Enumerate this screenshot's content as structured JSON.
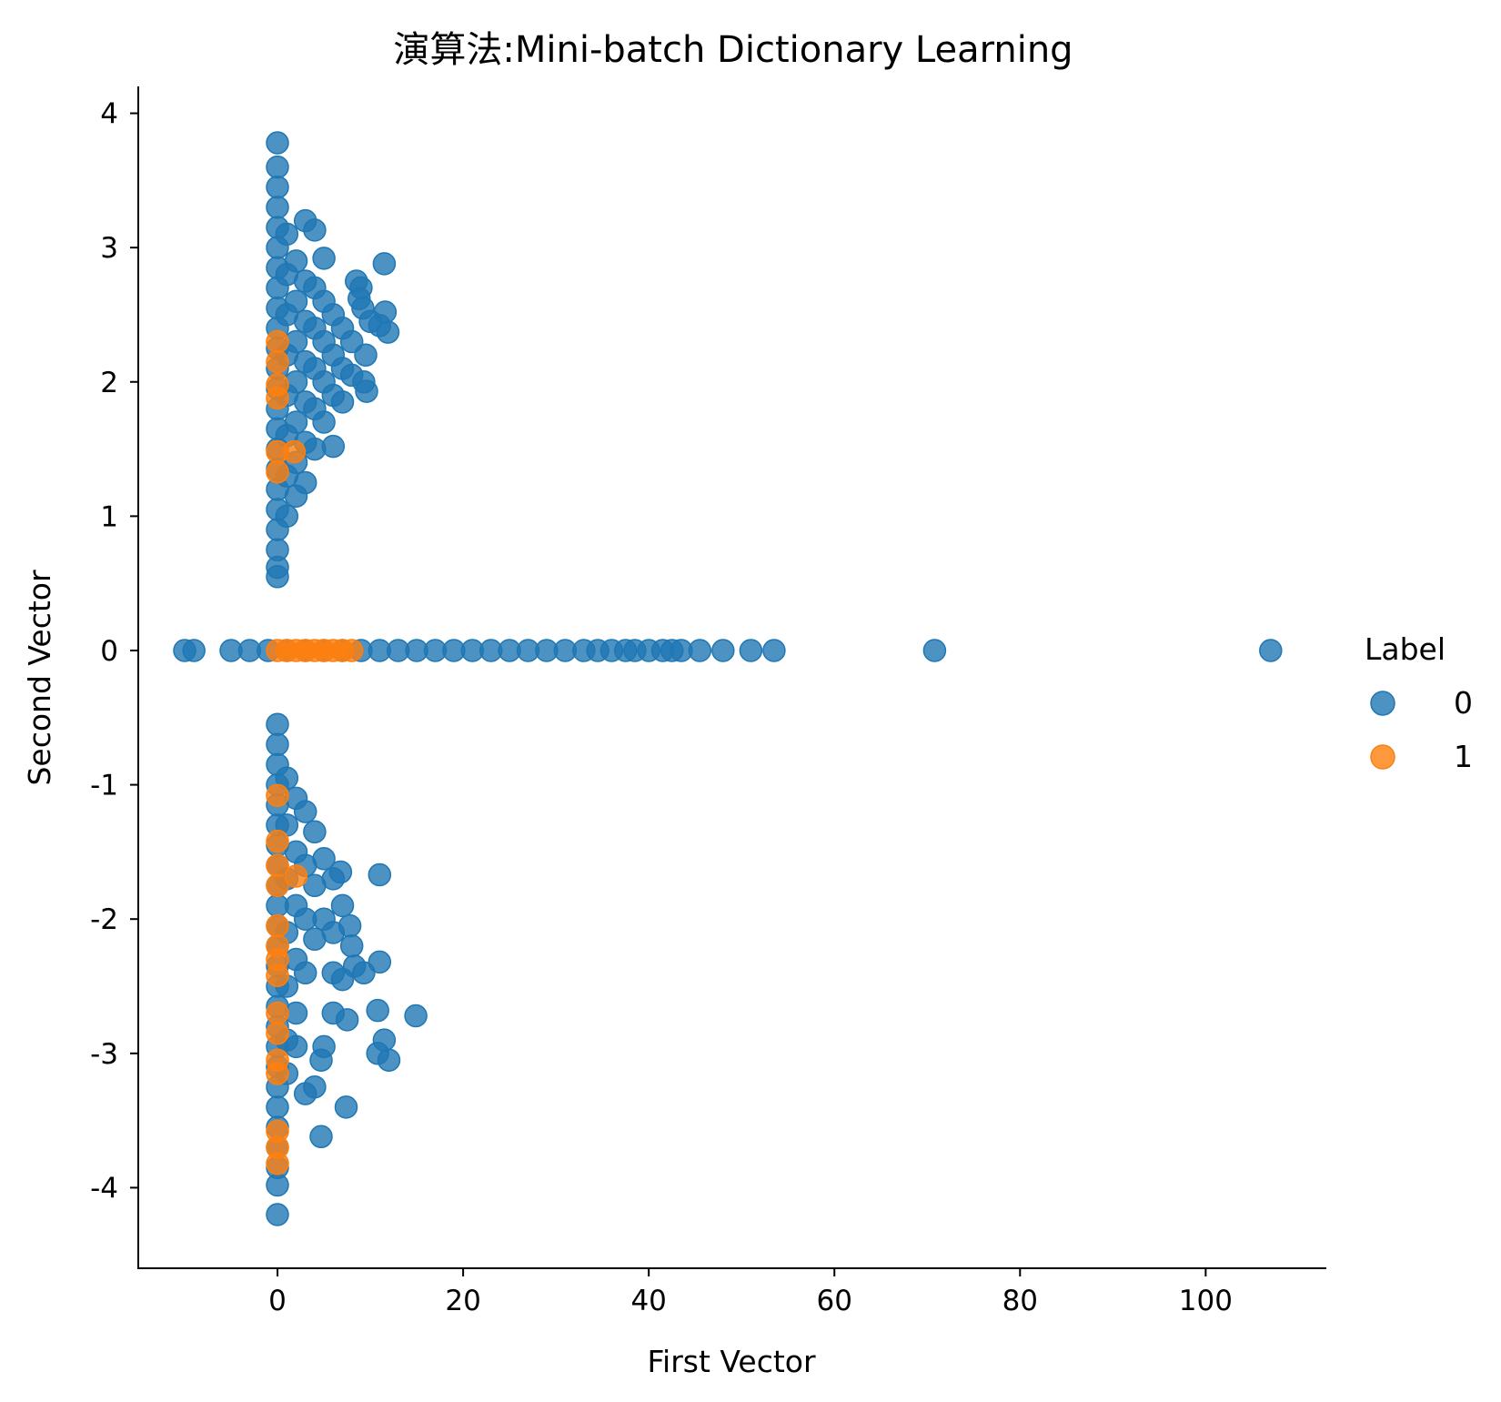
{
  "chart_data": {
    "type": "scatter",
    "title": "演算法:Mini-batch Dictionary Learning",
    "xlabel": "First Vector",
    "ylabel": "Second Vector",
    "xlim": [
      -15,
      113
    ],
    "ylim": [
      -4.6,
      4.2
    ],
    "x_ticks": [
      0,
      20,
      40,
      60,
      80,
      100
    ],
    "y_ticks": [
      -4,
      -3,
      -2,
      -1,
      0,
      1,
      2,
      3,
      4
    ],
    "x_tick_labels": [
      "0",
      "20",
      "40",
      "60",
      "80",
      "100"
    ],
    "y_tick_labels": [
      "-4",
      "-3",
      "-2",
      "-1",
      "0",
      "1",
      "2",
      "3",
      "4"
    ],
    "grid": false,
    "legend": {
      "title": "Label",
      "position": "right-center",
      "entries": [
        "0",
        "1"
      ]
    },
    "series": [
      {
        "name": "0",
        "color": "#1f77b4",
        "points": [
          [
            -10,
            0
          ],
          [
            -9,
            0
          ],
          [
            -5,
            0
          ],
          [
            -3,
            0
          ],
          [
            -1,
            0
          ],
          [
            1,
            0
          ],
          [
            3,
            0
          ],
          [
            5,
            0
          ],
          [
            7,
            0
          ],
          [
            9,
            0
          ],
          [
            11,
            0
          ],
          [
            13,
            0
          ],
          [
            15,
            0
          ],
          [
            17,
            0
          ],
          [
            19,
            0
          ],
          [
            21,
            0
          ],
          [
            23,
            0
          ],
          [
            25,
            0
          ],
          [
            27,
            0
          ],
          [
            29,
            0
          ],
          [
            31,
            0
          ],
          [
            33,
            0
          ],
          [
            34.5,
            0
          ],
          [
            36,
            0
          ],
          [
            37.5,
            0
          ],
          [
            38.5,
            0
          ],
          [
            40,
            0
          ],
          [
            41.5,
            0
          ],
          [
            42.5,
            0
          ],
          [
            43.5,
            0
          ],
          [
            45.5,
            0
          ],
          [
            48,
            0
          ],
          [
            51,
            0
          ],
          [
            53.5,
            0
          ],
          [
            70.8,
            0
          ],
          [
            107,
            0
          ],
          [
            0,
            3.78
          ],
          [
            0,
            3.6
          ],
          [
            0,
            3.45
          ],
          [
            0,
            3.3
          ],
          [
            0,
            3.15
          ],
          [
            0,
            3.0
          ],
          [
            0,
            2.85
          ],
          [
            0,
            2.7
          ],
          [
            0,
            2.55
          ],
          [
            0,
            2.4
          ],
          [
            0,
            2.25
          ],
          [
            0,
            2.1
          ],
          [
            0,
            1.95
          ],
          [
            0,
            1.8
          ],
          [
            0,
            1.65
          ],
          [
            0,
            1.5
          ],
          [
            0,
            1.35
          ],
          [
            0,
            1.2
          ],
          [
            0,
            1.05
          ],
          [
            0,
            0.9
          ],
          [
            0,
            0.75
          ],
          [
            0,
            0.62
          ],
          [
            0,
            0.55
          ],
          [
            1,
            3.1
          ],
          [
            1,
            2.8
          ],
          [
            1,
            2.5
          ],
          [
            1,
            2.2
          ],
          [
            1,
            1.9
          ],
          [
            1,
            1.6
          ],
          [
            1,
            1.3
          ],
          [
            1,
            1.0
          ],
          [
            2,
            2.9
          ],
          [
            2,
            2.6
          ],
          [
            2,
            2.3
          ],
          [
            2,
            2.0
          ],
          [
            2,
            1.7
          ],
          [
            2,
            1.4
          ],
          [
            2,
            1.15
          ],
          [
            3,
            3.2
          ],
          [
            3,
            2.75
          ],
          [
            3,
            2.45
          ],
          [
            3,
            2.15
          ],
          [
            3,
            1.85
          ],
          [
            3,
            1.55
          ],
          [
            3,
            1.25
          ],
          [
            4,
            3.13
          ],
          [
            4,
            2.7
          ],
          [
            4,
            2.4
          ],
          [
            4,
            2.1
          ],
          [
            4,
            1.8
          ],
          [
            4,
            1.5
          ],
          [
            5,
            2.92
          ],
          [
            5,
            2.6
          ],
          [
            5,
            2.3
          ],
          [
            5,
            2.0
          ],
          [
            5,
            1.7
          ],
          [
            6,
            2.5
          ],
          [
            6,
            2.2
          ],
          [
            6,
            1.9
          ],
          [
            6,
            1.52
          ],
          [
            7,
            2.4
          ],
          [
            7,
            2.1
          ],
          [
            7,
            1.85
          ],
          [
            8,
            2.3
          ],
          [
            8,
            2.05
          ],
          [
            8.5,
            2.75
          ],
          [
            9,
            2.7
          ],
          [
            8.8,
            2.62
          ],
          [
            9.2,
            2.55
          ],
          [
            9.5,
            2.2
          ],
          [
            9.3,
            2.0
          ],
          [
            9.6,
            1.93
          ],
          [
            10,
            2.45
          ],
          [
            11,
            2.42
          ],
          [
            11.5,
            2.88
          ],
          [
            11.6,
            2.52
          ],
          [
            11.9,
            2.37
          ],
          [
            0,
            -0.55
          ],
          [
            0,
            -0.7
          ],
          [
            0,
            -0.85
          ],
          [
            0,
            -1.0
          ],
          [
            0,
            -1.15
          ],
          [
            0,
            -1.3
          ],
          [
            0,
            -1.45
          ],
          [
            0,
            -1.6
          ],
          [
            0,
            -1.75
          ],
          [
            0,
            -1.9
          ],
          [
            0,
            -2.05
          ],
          [
            0,
            -2.2
          ],
          [
            0,
            -2.35
          ],
          [
            0,
            -2.5
          ],
          [
            0,
            -2.65
          ],
          [
            0,
            -2.8
          ],
          [
            0,
            -2.95
          ],
          [
            0,
            -3.1
          ],
          [
            0,
            -3.25
          ],
          [
            0,
            -3.4
          ],
          [
            0,
            -3.55
          ],
          [
            0,
            -3.7
          ],
          [
            0,
            -3.85
          ],
          [
            0,
            -3.98
          ],
          [
            0,
            -4.2
          ],
          [
            1,
            -0.95
          ],
          [
            1,
            -1.3
          ],
          [
            1,
            -1.7
          ],
          [
            1,
            -2.1
          ],
          [
            1,
            -2.5
          ],
          [
            1,
            -2.9
          ],
          [
            1,
            -3.15
          ],
          [
            2,
            -1.1
          ],
          [
            2,
            -1.5
          ],
          [
            2,
            -1.9
          ],
          [
            2,
            -2.3
          ],
          [
            2,
            -2.7
          ],
          [
            2,
            -2.95
          ],
          [
            3,
            -1.2
          ],
          [
            3,
            -1.6
          ],
          [
            3,
            -2.0
          ],
          [
            3,
            -2.4
          ],
          [
            3,
            -3.3
          ],
          [
            4,
            -1.35
          ],
          [
            4,
            -1.75
          ],
          [
            4,
            -2.15
          ],
          [
            4,
            -3.25
          ],
          [
            4.7,
            -3.05
          ],
          [
            5,
            -2.95
          ],
          [
            4.7,
            -3.62
          ],
          [
            5,
            -1.55
          ],
          [
            5,
            -2.0
          ],
          [
            6,
            -1.7
          ],
          [
            6,
            -2.1
          ],
          [
            6,
            -2.4
          ],
          [
            6,
            -2.7
          ],
          [
            6.8,
            -1.65
          ],
          [
            7,
            -1.9
          ],
          [
            7,
            -2.45
          ],
          [
            7.5,
            -2.75
          ],
          [
            7.4,
            -3.4
          ],
          [
            7.8,
            -2.05
          ],
          [
            8,
            -2.2
          ],
          [
            8.3,
            -2.35
          ],
          [
            9.3,
            -2.4
          ],
          [
            11,
            -1.67
          ],
          [
            11,
            -2.32
          ],
          [
            10.8,
            -2.68
          ],
          [
            10.8,
            -3.0
          ],
          [
            11.5,
            -2.9
          ],
          [
            12,
            -3.05
          ],
          [
            14.9,
            -2.72
          ]
        ]
      },
      {
        "name": "1",
        "color": "#ff7f0e",
        "points": [
          [
            0,
            0
          ],
          [
            1,
            0
          ],
          [
            2,
            0
          ],
          [
            3,
            0
          ],
          [
            4,
            0
          ],
          [
            5,
            0
          ],
          [
            6,
            0
          ],
          [
            7,
            0
          ],
          [
            8,
            0
          ],
          [
            0,
            2.3
          ],
          [
            0,
            2.15
          ],
          [
            0,
            1.98
          ],
          [
            0,
            1.88
          ],
          [
            0,
            1.48
          ],
          [
            0,
            1.33
          ],
          [
            1.8,
            1.48
          ],
          [
            0,
            -1.08
          ],
          [
            0,
            -1.42
          ],
          [
            0,
            -1.6
          ],
          [
            0,
            -1.75
          ],
          [
            2,
            -1.68
          ],
          [
            0,
            -2.05
          ],
          [
            0,
            -2.2
          ],
          [
            0,
            -2.3
          ],
          [
            0,
            -2.42
          ],
          [
            0,
            -2.7
          ],
          [
            0,
            -2.85
          ],
          [
            0,
            -3.05
          ],
          [
            0,
            -3.15
          ],
          [
            0,
            -3.58
          ],
          [
            0,
            -3.7
          ],
          [
            0,
            -3.82
          ]
        ]
      }
    ]
  }
}
